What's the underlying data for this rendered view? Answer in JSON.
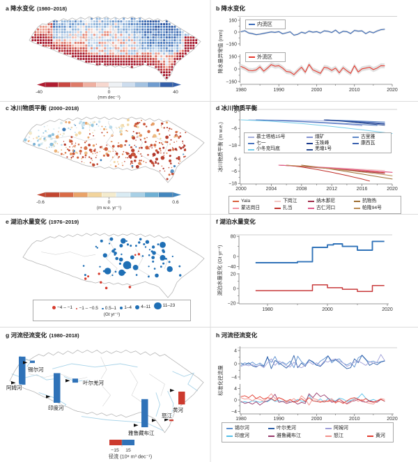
{
  "panels": {
    "a": {
      "label": "a",
      "title": "降水变化",
      "period": "(1980–2018)",
      "colorbar": {
        "ticks": [
          "-40",
          "0",
          "40"
        ],
        "unit": "(mm dec⁻¹)"
      }
    },
    "b": {
      "label": "b",
      "title": "降水变化",
      "ylabel": "降水量异常值 (mm)",
      "series_labels": [
        "内流区",
        "外流区"
      ],
      "yticks": [
        "160",
        "0",
        "−160"
      ],
      "xticks": [
        "1980",
        "1990",
        "2000",
        "2010",
        "2020"
      ]
    },
    "c": {
      "label": "c",
      "title": "冰川物质平衡",
      "period": "(2000–2018)",
      "colorbar": {
        "ticks": [
          "-0.6",
          "0",
          "0.6"
        ],
        "unit": "(m w.e. yr⁻¹)"
      }
    },
    "d": {
      "label": "d",
      "title": "冰川物质平衡",
      "ylabel": "冰川物质平衡 (m w.e.)",
      "yticks": [
        "6",
        "−6",
        "−18"
      ],
      "xticks": [
        "2000",
        "2004",
        "2008",
        "2012",
        "2016",
        "2020"
      ],
      "legend_top_order": [
        "慕士塔格15号",
        "煤矿",
        "古里雅",
        "七一",
        "玉珠峰",
        "康西瓦",
        "小冬克玛底",
        "羌塘1号"
      ],
      "legend_bottom_order": [
        "Yala",
        "下岗江",
        "纳木那尼",
        "抗物热",
        "蒙达岗日",
        "扎当",
        "古仁河口",
        "帕隆94号"
      ]
    },
    "e": {
      "label": "e",
      "title": "湖泊水量变化",
      "period": "(1976–2019)",
      "legend": {
        "classes": [
          {
            "label": "−4 – −1",
            "color": "#d63a2c",
            "r": 2.6
          },
          {
            "label": "−1 – −0.5",
            "color": "#d63a2c",
            "r": 1.2
          },
          {
            "label": "0.5–1",
            "color": "#1f6fb5",
            "r": 1.4
          },
          {
            "label": "1–4",
            "color": "#1f6fb5",
            "r": 2.1
          },
          {
            "label": "4–11",
            "color": "#1f6fb5",
            "r": 3.1
          },
          {
            "label": "11–23",
            "color": "#1f6fb5",
            "r": 5.2
          }
        ],
        "unit": "(Gt yr⁻¹)"
      }
    },
    "f": {
      "label": "f",
      "title": "湖泊水量变化",
      "ylabel": "湖泊水量变化 (Gt yr⁻¹)",
      "yticks_top": [
        "80",
        "0",
        "−40"
      ],
      "yticks_bottom": [
        "20",
        "0",
        "−20"
      ],
      "xticks": [
        "1980",
        "2000",
        "2020"
      ]
    },
    "g": {
      "label": "g",
      "title": "河流径流变化",
      "period": "(1980–2018)",
      "legend": {
        "ticks": [
          "−15",
          "15"
        ],
        "caption": "径流 (10⁸ m³ dec⁻¹)"
      }
    },
    "h": {
      "label": "h",
      "title": "河流径流变化",
      "ylabel": "标准化径流量",
      "yticks": [
        "4",
        "0",
        "−4"
      ],
      "xticks": [
        "1980",
        "1990",
        "2000",
        "2010",
        "2020"
      ],
      "legend_order": [
        "锡尔河",
        "叶尔羌河",
        "阿姆河",
        "",
        "印度河",
        "雅鲁藏布江",
        "怒江",
        "黄河"
      ]
    }
  },
  "chart_data": [
    {
      "id": "a",
      "type": "heatmap",
      "title": "降水变化 (1980–2018)",
      "variable": "降水趋势",
      "unit": "mm dec⁻¹",
      "colorbar_range": [
        -40,
        40
      ],
      "pattern": "青藏高原北部与中东部降水增加(蓝), 南缘、西北缘与东端减少(红), 中部变化微弱(浅色)"
    },
    {
      "id": "b",
      "type": "line",
      "title": "降水变化",
      "ylabel": "降水量异常值 (mm)",
      "ylim": [
        -160,
        160
      ],
      "grid": false,
      "legend_position": "upper-left-in-box",
      "series": [
        {
          "name": "内流区",
          "color": "#3a6ab8",
          "band": 14,
          "start_year": 1980,
          "values": [
            5,
            18,
            -12,
            -22,
            -35,
            -28,
            -18,
            -8,
            2,
            -4,
            6,
            -24,
            -10,
            4,
            -42,
            -30,
            -2,
            -16,
            12,
            -2,
            6,
            -12,
            16,
            10,
            -6,
            26,
            -16,
            10,
            6,
            -20,
            22,
            12,
            16,
            -22,
            6,
            -10,
            14,
            32,
            38
          ]
        },
        {
          "name": "外流区",
          "color": "#e8392e",
          "band": 32,
          "start_year": 1980,
          "values": [
            32,
            12,
            -18,
            -22,
            -12,
            28,
            -28,
            12,
            56,
            36,
            42,
            12,
            -32,
            -38,
            -72,
            -22,
            22,
            -42,
            58,
            -12,
            -32,
            -56,
            22,
            12,
            -18,
            12,
            -48,
            16,
            -22,
            -56,
            42,
            -38,
            2,
            12,
            22,
            -8,
            12,
            42,
            40
          ]
        }
      ]
    },
    {
      "id": "c",
      "type": "scatter-map",
      "title": "冰川物质平衡 (2000–2018)",
      "unit": "m w.e. yr⁻¹",
      "colorbar_range": [
        -0.6,
        0.6
      ],
      "pattern": "大多数冰川物质平衡为负(橙红色), 西北部(喀喇昆仑/西昆仑)部分冰川接近平衡或略为正(浅蓝色)"
    },
    {
      "id": "d",
      "type": "line",
      "title": "冰川物质平衡",
      "ylabel": "冰川物质平衡 (m w.e.)",
      "ylim": [
        -18,
        6
      ],
      "top_series": [
        {
          "name": "慕士塔格15号",
          "color": "#a3aedd",
          "x": [
            2001,
            2005,
            2009,
            2013,
            2017,
            2019
          ],
          "y": [
            0,
            -0.2,
            -0.5,
            -0.9,
            -1.3,
            -1.6
          ]
        },
        {
          "name": "煤矿",
          "color": "#7f8fd0",
          "x": [
            2002,
            2005,
            2008,
            2011,
            2014,
            2016
          ],
          "y": [
            0,
            -0.6,
            -1.3,
            -2.2,
            -3.2,
            -4.0
          ]
        },
        {
          "name": "古里雅",
          "color": "#5c86c6",
          "x": [
            2011,
            2013,
            2015,
            2017,
            2019
          ],
          "y": [
            0,
            -0.3,
            -0.7,
            -1.1,
            -1.5
          ]
        },
        {
          "name": "七一",
          "color": "#4a74be",
          "x": [
            2002,
            2006,
            2010,
            2014,
            2018
          ],
          "y": [
            0,
            -0.7,
            -1.6,
            -2.7,
            -3.9
          ]
        },
        {
          "name": "玉珠峰",
          "color": "#1b3a8c",
          "x": [
            2011,
            2013,
            2015,
            2017,
            2019
          ],
          "y": [
            0,
            -0.6,
            -1.4,
            -2.2,
            -3.0
          ]
        },
        {
          "name": "康西瓦",
          "color": "#3c62b0",
          "x": [
            2011,
            2013,
            2015,
            2017,
            2019
          ],
          "y": [
            0,
            -0.5,
            -1.1,
            -1.8,
            -2.5
          ]
        },
        {
          "name": "小冬克玛底",
          "color": "#72cbe9",
          "x": [
            2000,
            2004,
            2008,
            2012,
            2016,
            2020
          ],
          "y": [
            0,
            -1.0,
            -2.6,
            -4.6,
            -7.0,
            -9.6
          ]
        },
        {
          "name": "羌塘1号",
          "color": "#27498f",
          "x": [
            2011,
            2013,
            2015,
            2017,
            2019
          ],
          "y": [
            0,
            -0.8,
            -1.8,
            -2.8,
            -3.8
          ]
        }
      ],
      "bottom_series": [
        {
          "name": "Yala",
          "color": "#d95f3b",
          "x": [
            2005,
            2008,
            2011,
            2014,
            2017,
            2019
          ],
          "y": [
            0,
            -1.2,
            -2.8,
            -4.4,
            -6.2,
            -7.4
          ]
        },
        {
          "name": "下岗江",
          "color": "#f2c6c2",
          "x": [
            2005,
            2008,
            2011,
            2014,
            2017,
            2019
          ],
          "y": [
            0,
            -0.9,
            -2.0,
            -3.2,
            -4.4,
            -5.2
          ]
        },
        {
          "name": "纳木那尼",
          "color": "#9e2a47",
          "x": [
            2005,
            2008,
            2011,
            2014,
            2017,
            2019
          ],
          "y": [
            0,
            -1.4,
            -3.0,
            -4.8,
            -6.8,
            -8.0
          ]
        },
        {
          "name": "抗物热",
          "color": "#9c6b2f",
          "x": [
            2008,
            2010,
            2012,
            2014,
            2016,
            2018,
            2020
          ],
          "y": [
            0,
            -1.8,
            -4.0,
            -6.4,
            -8.8,
            -11.2,
            -13.6
          ]
        },
        {
          "name": "蒙达岗日",
          "color": "#f490a0",
          "x": [
            2005,
            2008,
            2011,
            2014,
            2017,
            2020
          ],
          "y": [
            0,
            -1.1,
            -2.5,
            -4.0,
            -5.6,
            -7.2
          ]
        },
        {
          "name": "扎当",
          "color": "#bf2c26",
          "x": [
            2006,
            2008,
            2010,
            2012,
            2014,
            2016,
            2017
          ],
          "y": [
            0,
            -1.8,
            -4.2,
            -7.0,
            -10.2,
            -13.6,
            -15.6
          ]
        },
        {
          "name": "古仁河口",
          "color": "#e05788",
          "x": [
            2005,
            2008,
            2011,
            2014,
            2017,
            2020
          ],
          "y": [
            0,
            -1.0,
            -2.3,
            -3.7,
            -5.3,
            -7.0
          ]
        },
        {
          "name": "帕隆94号",
          "color": "#b98a50",
          "x": [
            2006,
            2009,
            2012,
            2015,
            2018,
            2020
          ],
          "y": [
            0,
            -1.6,
            -3.6,
            -5.9,
            -8.4,
            -10.4
          ]
        }
      ]
    },
    {
      "id": "e",
      "type": "scatter-map",
      "title": "湖泊水量变化 (1976–2019)",
      "unit": "Gt yr⁻¹",
      "size_classes": [
        "−4 – −1",
        "−1 – −0.5",
        "0.5–1",
        "1–4",
        "4–11",
        "11–23"
      ],
      "pattern": "内流区(羌塘高原)湖泊水量普遍增加(蓝色圆点, 圆点越大增量越大), 南部与西南部少数湖泊减少(红色圆点)"
    },
    {
      "id": "f",
      "type": "step",
      "title": "湖泊水量变化",
      "ylabel": "湖泊水量变化 (Gt yr⁻¹)",
      "series": [
        {
          "name": "内流区",
          "color": "#2f72b8",
          "ylim": [
            -40,
            80
          ],
          "breaks": [
            1976,
            1990,
            1995,
            2000,
            2002,
            2005,
            2010,
            2015,
            2019
          ],
          "values": [
            -25,
            -21,
            36,
            46,
            50,
            40,
            25,
            60
          ]
        },
        {
          "name": "外流区",
          "color": "#c8393a",
          "ylim": [
            -20,
            20
          ],
          "breaks": [
            1976,
            1995,
            2000,
            2005,
            2010,
            2015,
            2019
          ],
          "values": [
            -3,
            5,
            1,
            -1,
            -4,
            4
          ]
        }
      ]
    },
    {
      "id": "g",
      "type": "map-bars",
      "title": "河流径流变化 (1980–2018)",
      "unit": "10⁸ m³ dec⁻¹",
      "legend_ticks": [
        -15,
        15
      ],
      "pos_color": "#2f72b8",
      "neg_color": "#cc3a2e",
      "bars": [
        {
          "name": "阿姆河",
          "value": 35
        },
        {
          "name": "锡尔河",
          "value": 3
        },
        {
          "name": "印度河",
          "value": 37
        },
        {
          "name": "叶尔羌河",
          "value": 5
        },
        {
          "name": "雅鲁藏布江",
          "value": 35
        },
        {
          "name": "怒江",
          "value": -2
        },
        {
          "name": "黄河",
          "value": -16
        }
      ]
    },
    {
      "id": "h",
      "type": "line",
      "title": "河流径流变化",
      "ylabel": "标准化径流量",
      "ylim": [
        -4,
        4
      ],
      "series": [
        {
          "name": "锡尔河",
          "color": "#5b8fd0",
          "start_year": 1980,
          "values": [
            -0.5,
            0.3,
            -0.2,
            0.5,
            -0.4,
            0.2,
            -0.6,
            1.8,
            0.4,
            2.2,
            -0.3,
            0.5,
            -0.2,
            0.8,
            -1.2,
            2.3,
            0.6,
            -0.3,
            1.2,
            0.4,
            -0.5,
            0.8,
            1.5,
            2.4,
            0.3,
            1.2,
            1.5,
            0.2,
            -0.4,
            0.3,
            -1.0,
            1.8,
            2.5,
            1.2,
            0.5,
            0.8,
            0.3,
            0.6,
            0.9
          ]
        },
        {
          "name": "叶尔羌河",
          "color": "#2b5ea8",
          "start_year": 1980,
          "values": [
            0.2,
            -0.4,
            0.3,
            -0.6,
            -1.0,
            -0.3,
            -0.8,
            2.2,
            -1.5,
            1.0,
            0.3,
            -0.5,
            -1.3,
            -0.2,
            2.5,
            -1.2,
            0.2,
            -0.8,
            1.2,
            0.6,
            -0.4,
            -0.8,
            0.4,
            2.4,
            0.8,
            1.2,
            0.4,
            -0.6,
            -1.5,
            -1.2,
            1.5,
            0.3,
            2.6,
            1.4,
            -0.5,
            0.2,
            -0.3,
            0.5,
            0.8
          ]
        },
        {
          "name": "阿姆河",
          "color": "#9f9fd8",
          "start_year": 1980,
          "values": [
            -0.8,
            -0.3,
            -0.6,
            -0.2,
            -0.8,
            -0.4,
            -1.2,
            0.3,
            1.5,
            -0.5,
            0.8,
            0.2,
            -0.6,
            -1.0,
            0.5,
            -0.8,
            -1.2,
            -0.5,
            0.6,
            -0.2,
            0.3,
            -0.6,
            0.8,
            0.5,
            1.2,
            1.5,
            0.8,
            0.3,
            -0.8,
            -0.3,
            0.5,
            0.8,
            0.2,
            -0.5,
            0.6,
            0.2,
            0.5,
            2.8,
            1.0
          ]
        },
        {
          "name": "印度河",
          "color": "#52bfe8",
          "start_year": 1980,
          "values": [
            -0.8,
            -0.6,
            -0.9,
            -0.3,
            -0.5,
            -0.8,
            -0.4,
            -0.6,
            0.3,
            -0.5,
            -0.2,
            -0.6,
            -0.3,
            -0.8,
            -0.5,
            0.2,
            -0.4,
            -0.6,
            1.8,
            -0.3,
            -0.5,
            0.4,
            -0.8,
            0.5,
            0.2,
            -0.4,
            0.6,
            0.3,
            -0.5,
            -0.2,
            0.4,
            0.8,
            2.2,
            0.6,
            -0.3,
            0.2,
            -0.4,
            0.3,
            -0.5
          ]
        },
        {
          "name": "雅鲁藏布江",
          "color": "#97386b",
          "start_year": 1980,
          "values": [
            -0.5,
            -1.2,
            -0.8,
            -1.5,
            -0.6,
            -1.8,
            -0.8,
            -0.3,
            0.5,
            2.0,
            -0.8,
            -0.5,
            -1.2,
            -0.8,
            -0.5,
            -1.5,
            -0.8,
            -1.2,
            2.2,
            0.8,
            2.5,
            1.2,
            1.8,
            0.6,
            -0.8,
            -0.5,
            0.3,
            -0.8,
            -1.2,
            -0.5,
            -0.3,
            0.2,
            -0.5,
            -0.8,
            -0.3,
            -0.6,
            -0.8,
            0.2,
            -0.4
          ]
        },
        {
          "name": "怒江",
          "color": "#f2908a",
          "start_year": 1980,
          "values": [
            0.8,
            0.3,
            0.5,
            -0.3,
            0.6,
            0.2,
            -0.5,
            0.8,
            2.2,
            0.5,
            0.8,
            0.2,
            -0.8,
            -0.3,
            0.5,
            -0.6,
            1.5,
            0.3,
            -1.8,
            0.5,
            0.2,
            -0.5,
            -0.8,
            -0.3,
            0.5,
            -1.2,
            0.3,
            -0.5,
            -1.5,
            -0.8,
            0.3,
            -0.5,
            0.2,
            -0.8,
            -1.2,
            -1.5,
            -0.3,
            0.5,
            0.2
          ]
        },
        {
          "name": "黄河",
          "color": "#e33b2e",
          "start_year": 1980,
          "values": [
            1.2,
            1.5,
            0.8,
            1.8,
            0.5,
            1.2,
            0.3,
            0.8,
            0.5,
            -0.3,
            0.8,
            0.3,
            -0.5,
            0.2,
            -0.8,
            -0.3,
            0.5,
            -0.5,
            0.8,
            -0.3,
            -0.5,
            -0.8,
            -0.3,
            -0.5,
            -0.2,
            -0.8,
            -0.5,
            -1.2,
            -0.3,
            0.5,
            0.8,
            0.3,
            -0.3,
            0.5,
            -0.5,
            -0.8,
            -0.3,
            0.2,
            -0.4
          ]
        }
      ]
    }
  ]
}
